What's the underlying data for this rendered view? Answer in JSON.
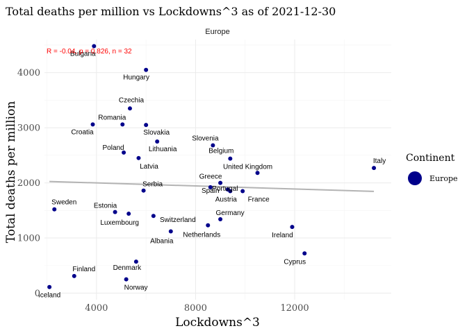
{
  "chart_data": {
    "type": "scatter",
    "title": "Total deaths per million vs Lockdowns^3 as of 2021-12-30",
    "facet": "Europe",
    "xlabel": "Lockdowns^3",
    "ylabel": "Total deaths per million",
    "xlim": [
      1900,
      15900
    ],
    "ylim": [
      -120,
      4600
    ],
    "x_ticks": [
      4000,
      8000,
      12000
    ],
    "x_minor_ticks": [
      2000,
      6000,
      10000,
      14000
    ],
    "y_ticks": [
      0,
      1000,
      2000,
      3000,
      4000
    ],
    "y_minor_ticks": [
      500,
      1500,
      2500,
      3500,
      4500
    ],
    "stat_text": "R = -0.04, p = 0.826, n = 32",
    "colors": {
      "points": "#00008b",
      "trend": "#b3b3b3",
      "stat": "#ff0000"
    },
    "trend": {
      "x": [
        2100,
        15200
      ],
      "y": [
        2025,
        1845
      ]
    },
    "legend": {
      "title": "Continent",
      "entries": [
        "Europe"
      ],
      "placement": "right"
    },
    "points": [
      {
        "label": "Bulgaria",
        "x": 3900,
        "y": 4480
      },
      {
        "label": "Hungary",
        "x": 6000,
        "y": 4050
      },
      {
        "label": "Czechia",
        "x": 5350,
        "y": 3350
      },
      {
        "label": "Croatia",
        "x": 3850,
        "y": 3060
      },
      {
        "label": "Romania",
        "x": 5050,
        "y": 3060
      },
      {
        "label": "Slovakia",
        "x": 6000,
        "y": 3050
      },
      {
        "label": "Slovenia",
        "x": 8700,
        "y": 2680
      },
      {
        "label": "Lithuania",
        "x": 6450,
        "y": 2750
      },
      {
        "label": "Poland",
        "x": 5100,
        "y": 2550
      },
      {
        "label": "Belgium",
        "x": 9400,
        "y": 2440
      },
      {
        "label": "Latvia",
        "x": 5700,
        "y": 2450
      },
      {
        "label": "Italy",
        "x": 15200,
        "y": 2270
      },
      {
        "label": "United Kingdom",
        "x": 10500,
        "y": 2180
      },
      {
        "label": "Greece",
        "x": 9000,
        "y": 2000
      },
      {
        "label": "Portugal",
        "x": 8600,
        "y": 1920
      },
      {
        "label": "Serbia",
        "x": 5900,
        "y": 1860
      },
      {
        "label": "Spain",
        "x": 9300,
        "y": 1880
      },
      {
        "label": "France",
        "x": 9900,
        "y": 1850
      },
      {
        "label": "Austria",
        "x": 9400,
        "y": 1850
      },
      {
        "label": "Sweden",
        "x": 2300,
        "y": 1520
      },
      {
        "label": "Estonia",
        "x": 4750,
        "y": 1470
      },
      {
        "label": "Luxembourg",
        "x": 5300,
        "y": 1440
      },
      {
        "label": "Germany",
        "x": 9000,
        "y": 1340
      },
      {
        "label": "Switzerland",
        "x": 6300,
        "y": 1400
      },
      {
        "label": "Netherlands",
        "x": 8500,
        "y": 1230
      },
      {
        "label": "Ireland",
        "x": 11900,
        "y": 1200
      },
      {
        "label": "Albania",
        "x": 7000,
        "y": 1120
      },
      {
        "label": "Cyprus",
        "x": 12400,
        "y": 720
      },
      {
        "label": "Denmark",
        "x": 5600,
        "y": 570
      },
      {
        "label": "Finland",
        "x": 3100,
        "y": 310
      },
      {
        "label": "Norway",
        "x": 5200,
        "y": 250
      },
      {
        "label": "Iceland",
        "x": 2100,
        "y": 110
      }
    ]
  }
}
